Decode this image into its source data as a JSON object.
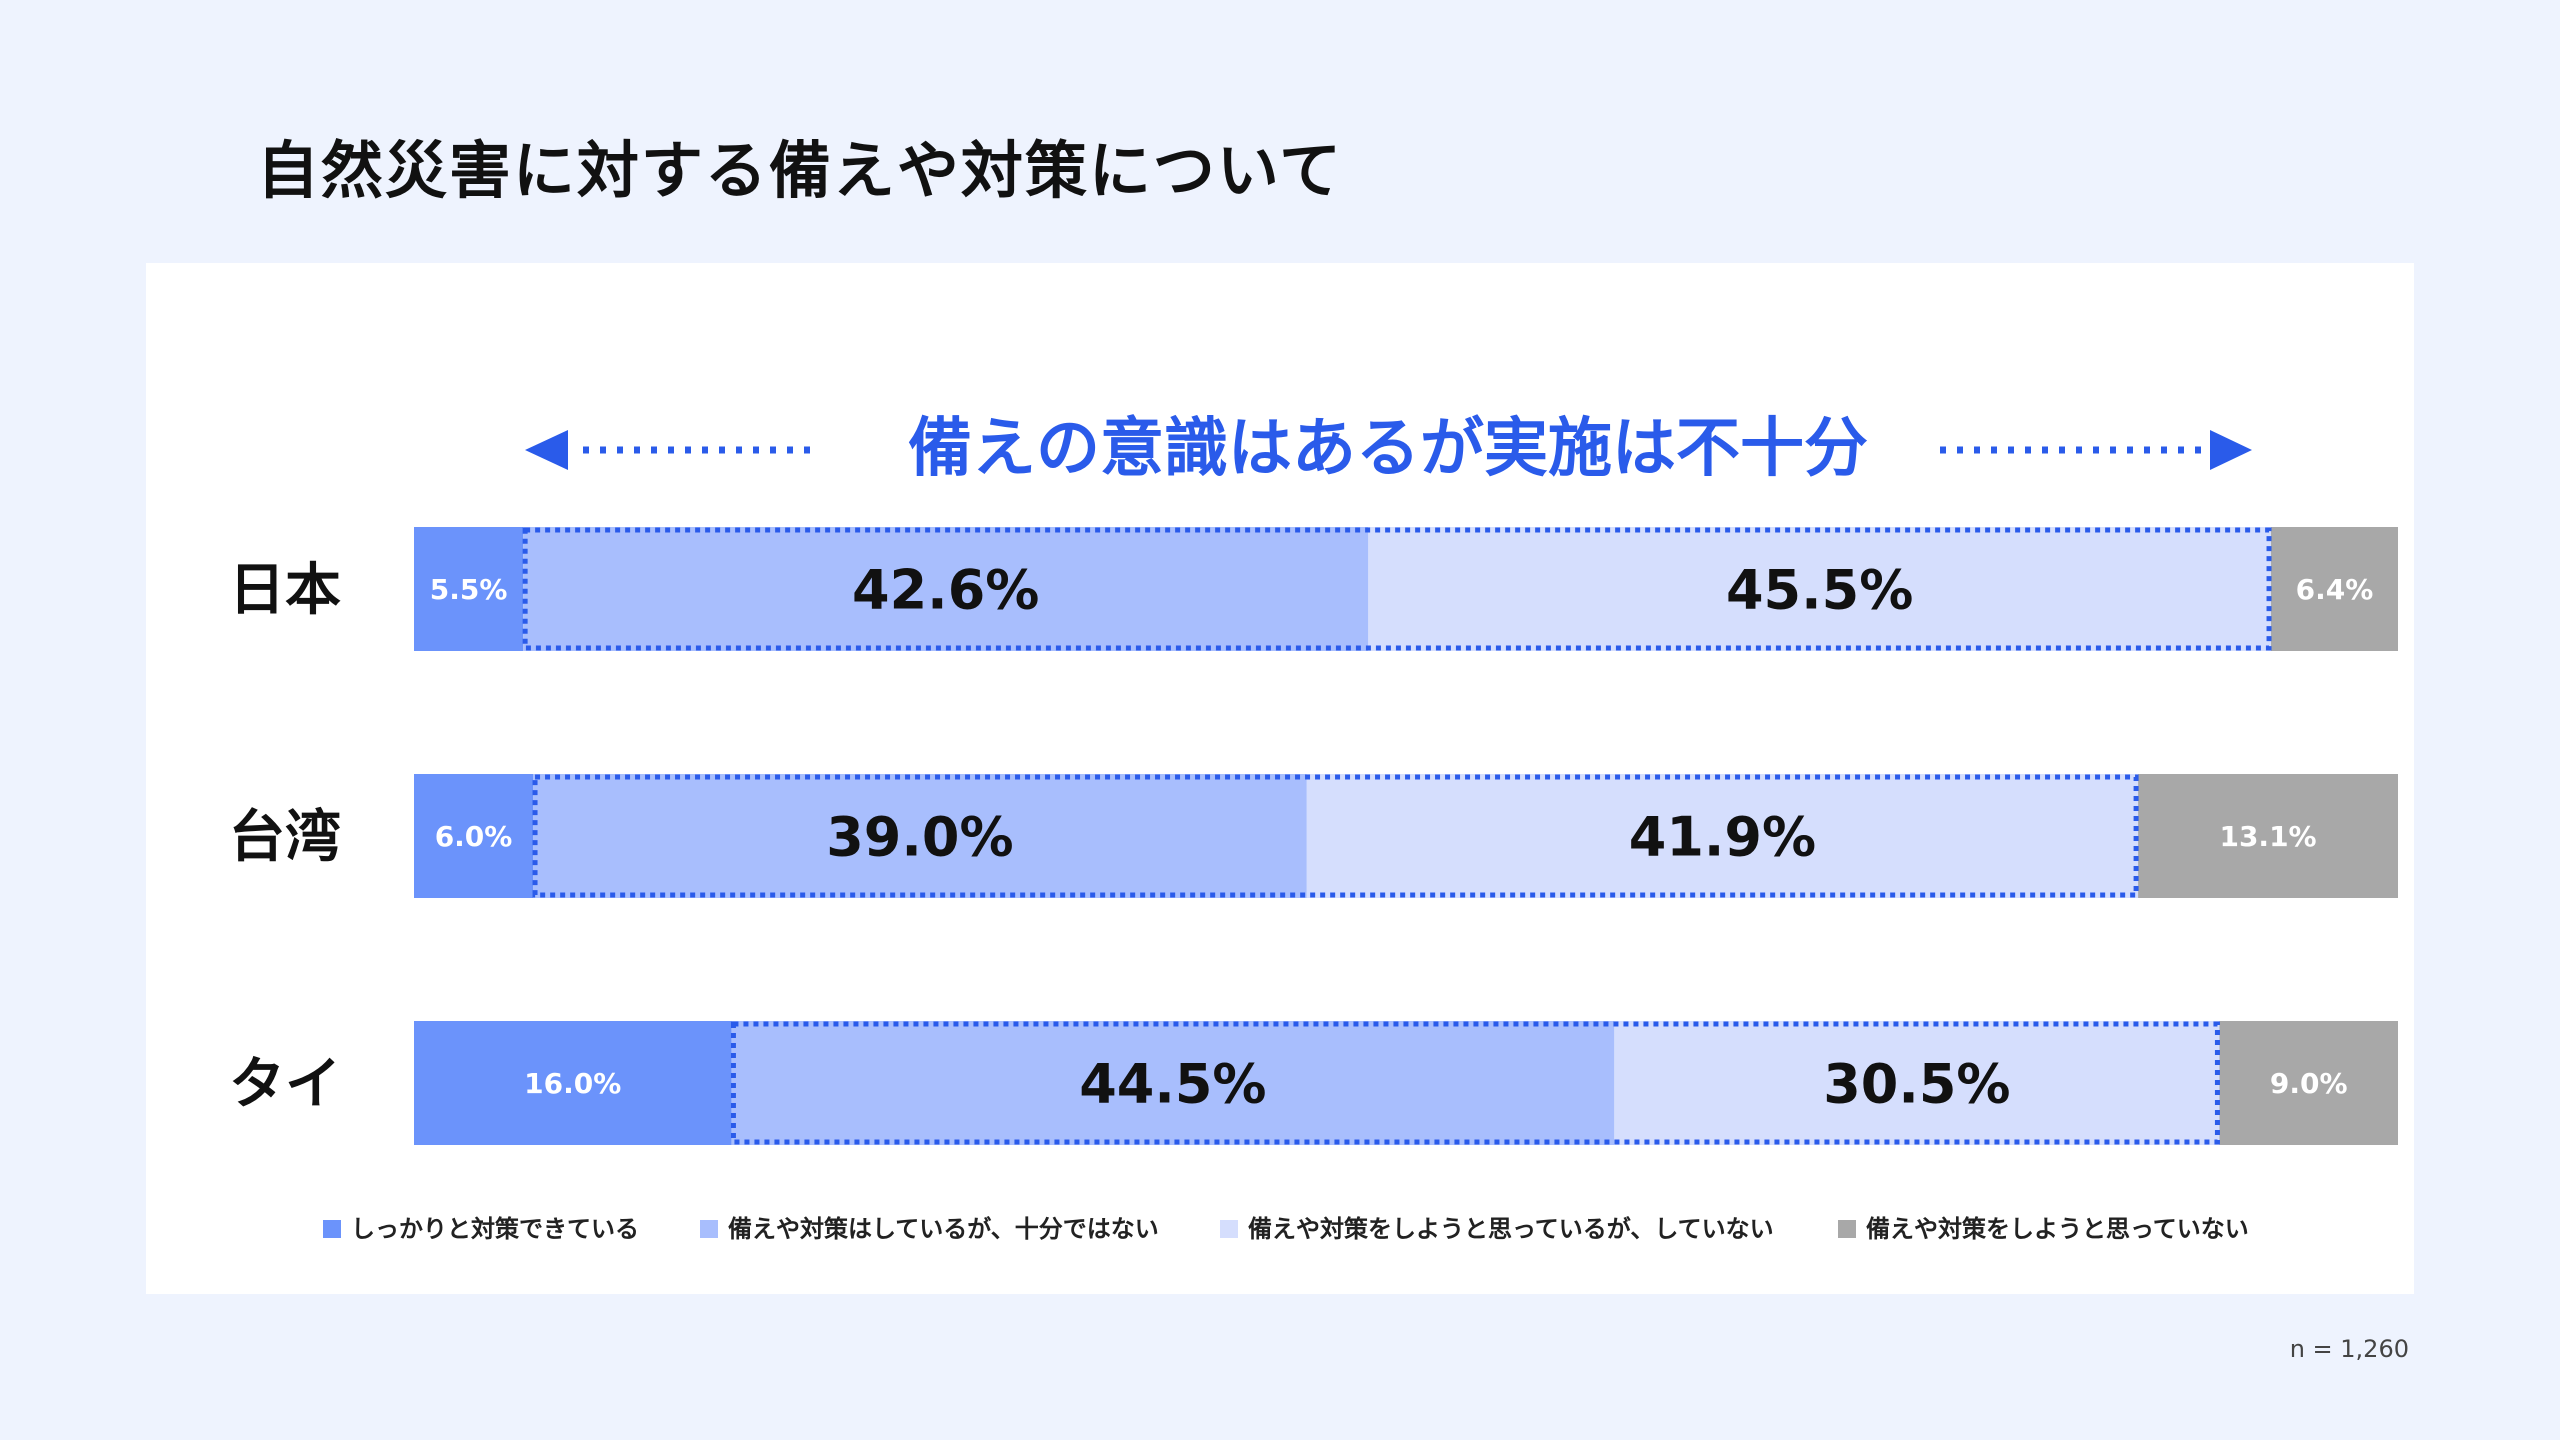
{
  "title": "自然災害に対する備えや対策について",
  "annotation": "備えの意識はあるが実施は不十分",
  "sample_note": "n = 1,260",
  "colors": {
    "background": "#eef3fe",
    "panel": "#ffffff",
    "accent": "#2a5bea",
    "seg1": "#6b93fb",
    "seg2": "#a8befd",
    "seg3": "#d5defd",
    "seg4": "#a8a8a8"
  },
  "chart_data": {
    "type": "bar",
    "orientation": "horizontal",
    "stacked": "100%",
    "categories": [
      "日本",
      "台湾",
      "タイ"
    ],
    "series": [
      {
        "name": "しっかりと対策できている",
        "values": [
          5.5,
          6.0,
          16.0
        ],
        "labels": [
          "5.5%",
          "6.0%",
          "16.0%"
        ]
      },
      {
        "name": "備えや対策はしているが、十分ではない",
        "values": [
          42.6,
          39.0,
          44.5
        ],
        "labels": [
          "42.6%",
          "39.0%",
          "44.5%"
        ]
      },
      {
        "name": "備えや対策をしようと思っているが、していない",
        "values": [
          45.5,
          41.9,
          30.5
        ],
        "labels": [
          "45.5%",
          "41.9%",
          "30.5%"
        ]
      },
      {
        "name": "備えや対策をしようと思っていない",
        "values": [
          6.4,
          13.1,
          9.0
        ],
        "labels": [
          "6.4%",
          "13.1%",
          "9.0%"
        ]
      }
    ],
    "xlim": [
      0,
      100
    ],
    "legend_position": "bottom",
    "grid": false
  }
}
